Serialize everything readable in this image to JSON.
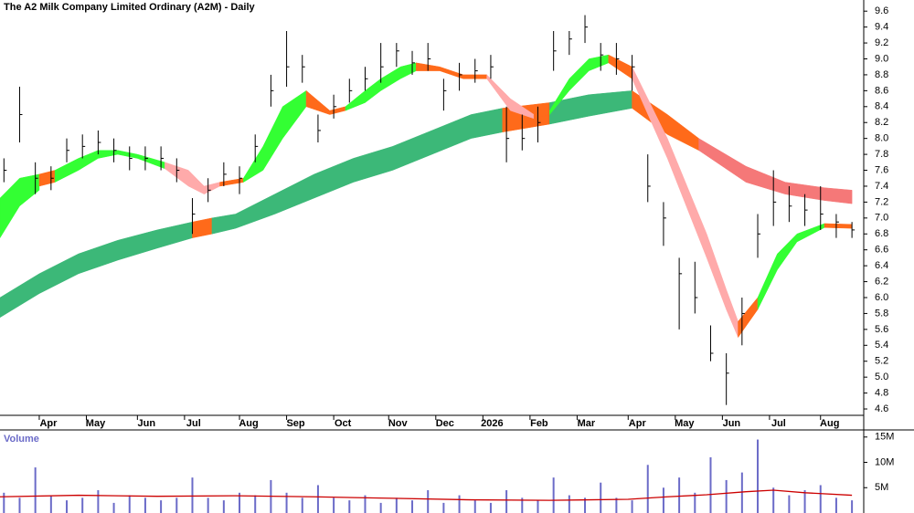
{
  "chart_data": [
    {
      "type": "hlc",
      "title": "The A2 Milk Company Limited Ordinary (A2M) - Daily",
      "color": "#000000",
      "x": [
        1,
        5,
        9,
        13,
        17,
        21,
        25,
        29,
        33,
        37,
        41,
        45,
        49,
        53,
        57,
        61,
        65,
        69,
        73,
        77,
        81,
        85,
        89,
        93,
        97,
        101,
        105,
        109,
        113,
        117,
        121,
        125,
        129,
        133,
        137,
        141,
        145,
        149,
        153,
        157,
        161,
        165,
        169,
        173,
        177,
        181,
        185,
        189,
        193,
        197,
        201,
        205,
        209,
        213,
        217
      ],
      "high": [
        7.75,
        8.65,
        7.7,
        7.65,
        8.0,
        8.05,
        8.1,
        8.0,
        7.9,
        7.9,
        7.9,
        7.75,
        7.25,
        7.5,
        7.7,
        7.65,
        8.05,
        8.8,
        9.35,
        9.05,
        8.3,
        8.55,
        8.75,
        8.9,
        9.2,
        9.2,
        9.1,
        9.2,
        8.75,
        8.95,
        9.0,
        9.05,
        8.4,
        8.3,
        8.4,
        9.35,
        9.35,
        9.55,
        9.2,
        9.2,
        9.05,
        7.8,
        7.2,
        6.5,
        6.45,
        5.65,
        5.3,
        6.0,
        7.05,
        7.6,
        7.4,
        7.3,
        7.4,
        7.05,
        6.95
      ],
      "low": [
        7.45,
        7.95,
        7.3,
        7.35,
        7.7,
        7.75,
        7.8,
        7.7,
        7.6,
        7.6,
        7.6,
        7.45,
        6.8,
        7.2,
        7.4,
        7.3,
        7.7,
        8.4,
        8.65,
        8.7,
        7.95,
        8.25,
        8.45,
        8.6,
        8.7,
        8.9,
        8.8,
        8.85,
        8.35,
        8.6,
        8.7,
        8.75,
        7.7,
        7.85,
        7.95,
        8.85,
        9.05,
        9.2,
        8.85,
        8.8,
        8.6,
        7.2,
        6.65,
        5.6,
        5.8,
        5.2,
        4.65,
        5.4,
        6.5,
        6.9,
        6.95,
        6.9,
        6.85,
        6.75,
        6.75
      ],
      "close": [
        7.6,
        8.3,
        7.5,
        7.5,
        7.85,
        7.9,
        7.95,
        7.85,
        7.75,
        7.75,
        7.75,
        7.6,
        7.05,
        7.35,
        7.55,
        7.5,
        7.9,
        8.6,
        8.9,
        8.9,
        8.1,
        8.4,
        8.6,
        8.75,
        8.9,
        9.1,
        8.95,
        9.0,
        8.6,
        8.8,
        8.85,
        8.9,
        8.0,
        8.0,
        8.2,
        9.1,
        9.25,
        9.4,
        9.05,
        9.0,
        8.9,
        7.4,
        7.0,
        6.3,
        6.0,
        5.3,
        5.05,
        5.8,
        6.8,
        7.2,
        7.15,
        7.1,
        7.05,
        6.95,
        6.85
      ],
      "xlim": [
        0,
        220
      ],
      "xticks": [
        {
          "value": 10,
          "label": "Apr"
        },
        {
          "value": 22,
          "label": "May"
        },
        {
          "value": 35,
          "label": "Jun"
        },
        {
          "value": 47,
          "label": "Jul"
        },
        {
          "value": 61,
          "label": "Aug"
        },
        {
          "value": 73,
          "label": "Sep"
        },
        {
          "value": 85,
          "label": "Oct"
        },
        {
          "value": 99,
          "label": "Nov"
        },
        {
          "value": 111,
          "label": "Dec"
        },
        {
          "value": 123,
          "label": "2026"
        },
        {
          "value": 135,
          "label": "Feb"
        },
        {
          "value": 147,
          "label": "Mar"
        },
        {
          "value": 160,
          "label": "Apr"
        },
        {
          "value": 172,
          "label": "May"
        },
        {
          "value": 184,
          "label": "Jun"
        },
        {
          "value": 196,
          "label": "Jul"
        },
        {
          "value": 209,
          "label": "Aug"
        }
      ],
      "ylim": [
        4.52,
        9.74
      ],
      "yticks": [
        4.6,
        4.8,
        {
          "value": 5,
          "label": "5.0"
        },
        5.2,
        5.4,
        5.6,
        5.8,
        {
          "value": 6,
          "label": "6.0"
        },
        6.2,
        6.4,
        6.6,
        6.8,
        {
          "value": 7,
          "label": "7.0"
        },
        7.2,
        7.4,
        7.6,
        7.8,
        {
          "value": 8,
          "label": "8.0"
        },
        8.2,
        8.4,
        8.6,
        8.8,
        {
          "value": 9,
          "label": "9.0"
        },
        9.2,
        9.4,
        9.6
      ],
      "ribbons": [
        {
          "color": "#3cb878",
          "x": [
            0,
            10,
            20,
            30,
            40,
            49
          ],
          "upper": [
            6.0,
            6.3,
            6.55,
            6.72,
            6.85,
            6.95
          ],
          "lower": [
            5.75,
            6.05,
            6.3,
            6.47,
            6.62,
            6.75
          ]
        },
        {
          "color": "#ff6a1a",
          "x": [
            49,
            54
          ],
          "upper": [
            6.95,
            7.0
          ],
          "lower": [
            6.75,
            6.8
          ]
        },
        {
          "color": "#3cb878",
          "x": [
            54,
            60,
            70,
            80,
            90,
            100,
            110,
            120,
            128
          ],
          "upper": [
            7.0,
            7.05,
            7.3,
            7.55,
            7.75,
            7.9,
            8.1,
            8.3,
            8.38
          ],
          "lower": [
            6.8,
            6.87,
            7.05,
            7.25,
            7.45,
            7.6,
            7.8,
            8.0,
            8.08
          ]
        },
        {
          "color": "#ff6a1a",
          "x": [
            128,
            140
          ],
          "upper": [
            8.38,
            8.45
          ],
          "lower": [
            8.08,
            8.18
          ]
        },
        {
          "color": "#3cb878",
          "x": [
            140,
            150,
            161
          ],
          "upper": [
            8.45,
            8.55,
            8.6
          ],
          "lower": [
            8.18,
            8.28,
            8.38
          ]
        },
        {
          "color": "#ff6a1a",
          "x": [
            161,
            170,
            178
          ],
          "upper": [
            8.6,
            8.3,
            8.0
          ],
          "lower": [
            8.38,
            8.05,
            7.85
          ]
        },
        {
          "color": "#f57878",
          "x": [
            178,
            190,
            200,
            210,
            217
          ],
          "upper": [
            8.0,
            7.65,
            7.45,
            7.38,
            7.35
          ],
          "lower": [
            7.85,
            7.45,
            7.3,
            7.22,
            7.18
          ]
        },
        {
          "color": "#33ff33",
          "x": [
            0,
            5,
            10
          ],
          "upper": [
            7.25,
            7.5,
            7.55
          ],
          "lower": [
            6.75,
            7.15,
            7.35
          ]
        },
        {
          "color": "#ff6a1a",
          "x": [
            10,
            14
          ],
          "upper": [
            7.55,
            7.6
          ],
          "lower": [
            7.4,
            7.45
          ]
        },
        {
          "color": "#33ff33",
          "x": [
            14,
            20,
            25,
            30,
            35,
            42
          ],
          "upper": [
            7.6,
            7.75,
            7.85,
            7.85,
            7.8,
            7.7
          ],
          "lower": [
            7.45,
            7.6,
            7.75,
            7.8,
            7.75,
            7.62
          ]
        },
        {
          "color": "#ffaaaa",
          "x": [
            42,
            48,
            52,
            56
          ],
          "upper": [
            7.7,
            7.6,
            7.4,
            7.45
          ],
          "lower": [
            7.62,
            7.4,
            7.3,
            7.4
          ]
        },
        {
          "color": "#ff6a1a",
          "x": [
            56,
            62
          ],
          "upper": [
            7.45,
            7.5
          ],
          "lower": [
            7.4,
            7.45
          ]
        },
        {
          "color": "#33ff33",
          "x": [
            62,
            67,
            72,
            78
          ],
          "upper": [
            7.5,
            7.9,
            8.4,
            8.6
          ],
          "lower": [
            7.45,
            7.6,
            8.0,
            8.4
          ]
        },
        {
          "color": "#ff6a1a",
          "x": [
            78,
            84,
            88
          ],
          "upper": [
            8.6,
            8.35,
            8.4
          ],
          "lower": [
            8.4,
            8.3,
            8.35
          ]
        },
        {
          "color": "#33ff33",
          "x": [
            88,
            93,
            97,
            102,
            106
          ],
          "upper": [
            8.4,
            8.6,
            8.75,
            8.9,
            8.95
          ],
          "lower": [
            8.35,
            8.45,
            8.6,
            8.75,
            8.85
          ]
        },
        {
          "color": "#ff6a1a",
          "x": [
            106,
            112,
            118,
            124
          ],
          "upper": [
            8.95,
            8.9,
            8.8,
            8.8
          ],
          "lower": [
            8.85,
            8.85,
            8.75,
            8.75
          ]
        },
        {
          "color": "#ffaaaa",
          "x": [
            124,
            130,
            136
          ],
          "upper": [
            8.8,
            8.5,
            8.3
          ],
          "lower": [
            8.75,
            8.35,
            8.25
          ]
        },
        {
          "color": "#ff6a1a",
          "x": [
            136,
            140
          ],
          "upper": [
            8.3,
            8.35
          ],
          "lower": [
            8.25,
            8.3
          ]
        },
        {
          "color": "#33ff33",
          "x": [
            140,
            145,
            150,
            155
          ],
          "upper": [
            8.35,
            8.75,
            9.0,
            9.05
          ],
          "lower": [
            8.3,
            8.6,
            8.85,
            8.95
          ]
        },
        {
          "color": "#ff6a1a",
          "x": [
            155,
            161
          ],
          "upper": [
            9.05,
            8.9
          ],
          "lower": [
            8.95,
            8.75
          ]
        },
        {
          "color": "#ffaaaa",
          "x": [
            161,
            170,
            180,
            185,
            188
          ],
          "upper": [
            8.9,
            8.0,
            6.8,
            6.1,
            5.7
          ],
          "lower": [
            8.75,
            7.75,
            6.5,
            5.85,
            5.5
          ]
        },
        {
          "color": "#ff6a1a",
          "x": [
            188,
            193
          ],
          "upper": [
            5.7,
            6.0
          ],
          "lower": [
            5.5,
            5.85
          ]
        },
        {
          "color": "#33ff33",
          "x": [
            193,
            198,
            203,
            210
          ],
          "upper": [
            6.0,
            6.55,
            6.8,
            6.93
          ],
          "lower": [
            5.85,
            6.35,
            6.7,
            6.88
          ]
        },
        {
          "color": "#ff6a1a",
          "x": [
            210,
            217
          ],
          "upper": [
            6.93,
            6.92
          ],
          "lower": [
            6.88,
            6.87
          ]
        }
      ]
    },
    {
      "type": "bar",
      "title": "Volume",
      "color": "#6b6bc8",
      "x": [
        1,
        5,
        9,
        13,
        17,
        21,
        25,
        29,
        33,
        37,
        41,
        45,
        49,
        53,
        57,
        61,
        65,
        69,
        73,
        77,
        81,
        85,
        89,
        93,
        97,
        101,
        105,
        109,
        113,
        117,
        121,
        125,
        129,
        133,
        137,
        141,
        145,
        149,
        153,
        157,
        161,
        165,
        169,
        173,
        177,
        181,
        185,
        189,
        193,
        197,
        201,
        205,
        209,
        213,
        217
      ],
      "values": [
        4000000,
        3000000,
        9000000,
        3500000,
        2500000,
        3000000,
        4500000,
        2000000,
        3500000,
        3000000,
        2500000,
        3000000,
        7000000,
        3000000,
        2500000,
        4000000,
        3500000,
        6500000,
        4000000,
        3000000,
        5500000,
        3000000,
        2500000,
        3500000,
        2000000,
        3000000,
        2500000,
        4500000,
        2000000,
        3500000,
        2500000,
        2000000,
        4500000,
        3000000,
        2500000,
        7000000,
        3500000,
        3000000,
        6000000,
        3000000,
        2500000,
        9500000,
        5000000,
        7000000,
        4000000,
        11000000,
        6500000,
        8000000,
        14500000,
        5000000,
        3500000,
        4500000,
        5500000,
        3000000,
        2500000
      ],
      "xlim": [
        0,
        220
      ],
      "ylim": [
        0,
        16400000
      ],
      "yticks": [
        {
          "value": 5000000,
          "label": "5M"
        },
        {
          "value": 10000000,
          "label": "10M"
        },
        {
          "value": 15000000,
          "label": "15M"
        }
      ],
      "average": {
        "color": "#cc0000",
        "x": [
          0,
          20,
          40,
          60,
          80,
          100,
          120,
          140,
          160,
          170,
          180,
          190,
          197,
          205,
          217
        ],
        "values": [
          3200000,
          3500000,
          3300000,
          3400000,
          3200000,
          2900000,
          2600000,
          2500000,
          2700000,
          3200000,
          3600000,
          4200000,
          4500000,
          4000000,
          3500000
        ]
      }
    }
  ]
}
